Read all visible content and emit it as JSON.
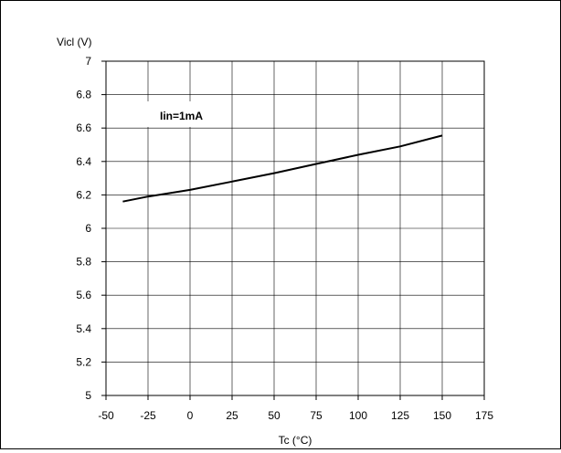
{
  "chart_data": {
    "type": "line",
    "ylabel": "Vicl (V)",
    "xlabel": "Tc (°C)",
    "annotation": "Iin=1mA",
    "xlim": [
      -50,
      175
    ],
    "ylim": [
      5,
      7
    ],
    "x_ticks": [
      -50,
      -25,
      0,
      25,
      50,
      75,
      100,
      125,
      150,
      175
    ],
    "y_ticks": [
      5,
      5.2,
      5.4,
      5.6,
      5.8,
      6,
      6.2,
      6.4,
      6.6,
      6.8,
      7
    ],
    "x_tick_labels": [
      "-50",
      "-25",
      "0",
      "25",
      "50",
      "75",
      "100",
      "125",
      "150",
      "175"
    ],
    "y_tick_labels": [
      "5",
      "5.2",
      "5.4",
      "5.6",
      "5.8",
      "6",
      "6.2",
      "6.4",
      "6.6",
      "6.8",
      "7"
    ],
    "grid": true,
    "series": [
      {
        "color": "#000000",
        "x": [
          -40,
          -25,
          0,
          25,
          50,
          75,
          100,
          125,
          150
        ],
        "y": [
          6.16,
          6.19,
          6.23,
          6.28,
          6.33,
          6.385,
          6.44,
          6.49,
          6.555
        ]
      }
    ]
  }
}
